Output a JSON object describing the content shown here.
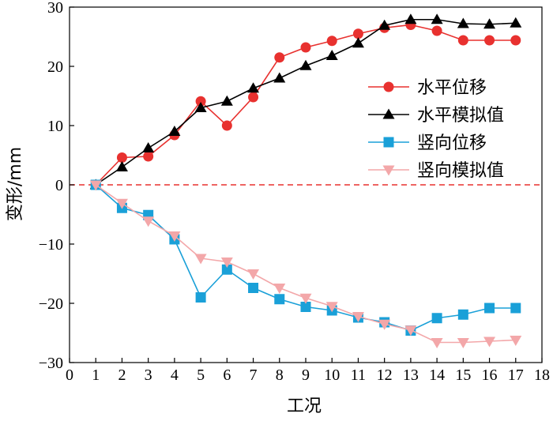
{
  "chart_data": {
    "type": "line",
    "xlabel": "工况",
    "ylabel": "变形/mm",
    "xlim": [
      0,
      18
    ],
    "ylim": [
      -30,
      30
    ],
    "xticks": [
      0,
      1,
      2,
      3,
      4,
      5,
      6,
      7,
      8,
      9,
      10,
      11,
      12,
      13,
      14,
      15,
      16,
      17,
      18
    ],
    "yticks": [
      -30,
      -20,
      -10,
      0,
      10,
      20,
      30
    ],
    "x": [
      1,
      2,
      3,
      4,
      5,
      6,
      7,
      8,
      9,
      10,
      11,
      12,
      13,
      14,
      15,
      16,
      17
    ],
    "reference_line": {
      "y": 0,
      "color": "#e8312f",
      "style": "dashed"
    },
    "legend_position": "right",
    "series": [
      {
        "name": "水平位移",
        "color": "#e8312f",
        "marker": "circle",
        "values": [
          0,
          4.6,
          4.8,
          8.4,
          14.1,
          10.0,
          14.8,
          21.5,
          23.2,
          24.3,
          25.5,
          26.5,
          27.0,
          26.0,
          24.4,
          24.4,
          24.4
        ]
      },
      {
        "name": "水平模拟值",
        "color": "#000000",
        "marker": "triangle-up",
        "values": [
          0,
          3.0,
          6.2,
          9.0,
          13.0,
          14.1,
          16.3,
          18.0,
          20.1,
          21.8,
          23.9,
          26.9,
          27.9,
          27.9,
          27.2,
          27.1,
          27.3
        ]
      },
      {
        "name": "竖向位移",
        "color": "#1aa0d8",
        "marker": "square",
        "values": [
          0,
          -3.9,
          -5.1,
          -9.2,
          -19.0,
          -14.3,
          -17.4,
          -19.3,
          -20.6,
          -21.2,
          -22.4,
          -23.2,
          -24.6,
          -22.5,
          -21.9,
          -20.8,
          -20.8
        ]
      },
      {
        "name": "竖向模拟值",
        "color": "#f3a7a9",
        "marker": "triangle-down",
        "values": [
          0,
          -3.1,
          -6.1,
          -8.6,
          -12.4,
          -13.0,
          -15.0,
          -17.4,
          -19.1,
          -20.5,
          -22.2,
          -23.5,
          -24.5,
          -26.6,
          -26.6,
          -26.4,
          -26.2
        ]
      }
    ]
  }
}
